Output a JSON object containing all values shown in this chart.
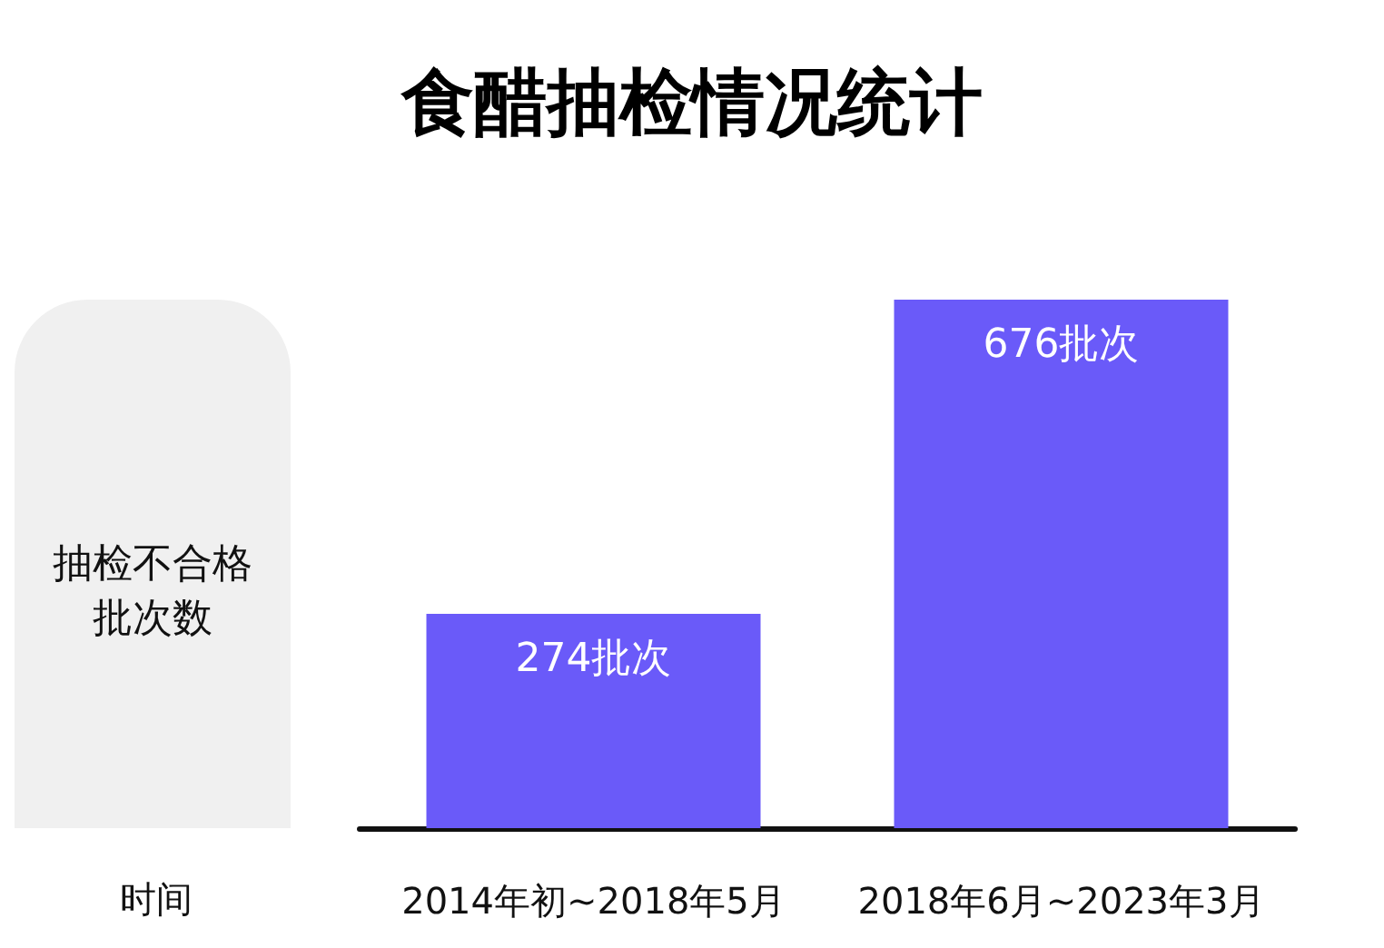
{
  "chart_data": {
    "type": "bar",
    "title": "食醋抽检情况统计",
    "xlabel": "时间",
    "ylabel": "抽检不合格批次数",
    "categories": [
      "2014年初~2018年5月",
      "2018年6月~2023年3月"
    ],
    "values": [
      274,
      676
    ],
    "color": "#6a5af9",
    "value_labels": [
      "274批次",
      "676批次"
    ]
  }
}
